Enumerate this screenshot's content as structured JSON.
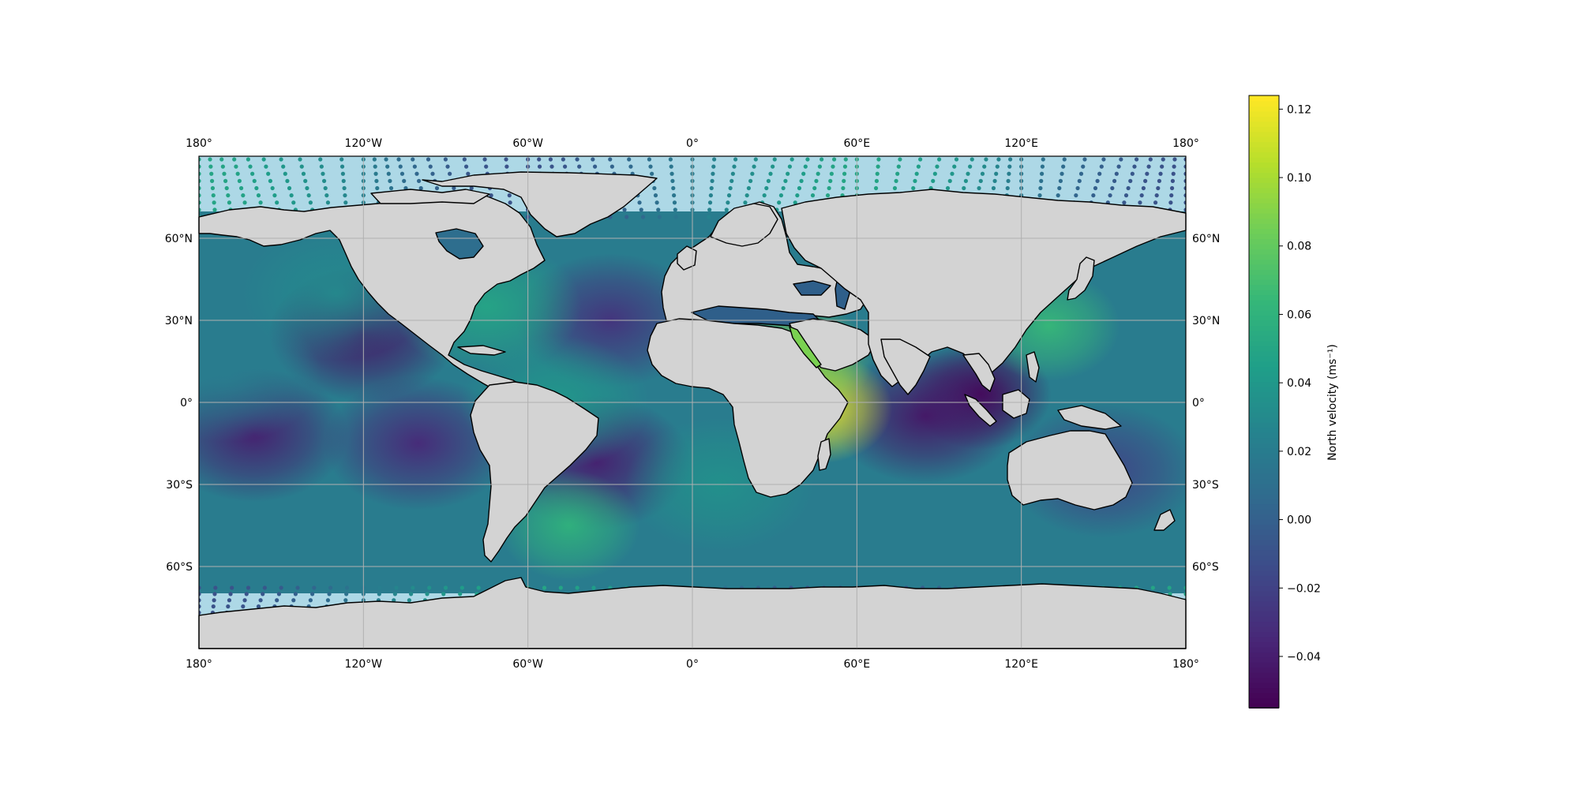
{
  "map": {
    "projection": "PlateCarree",
    "lon_range": [
      -180,
      180
    ],
    "lat_range": [
      -90,
      90
    ],
    "gridlines": true,
    "lon_ticks": [
      {
        "value": -180,
        "label": "180°"
      },
      {
        "value": -120,
        "label": "120°W"
      },
      {
        "value": -60,
        "label": "60°W"
      },
      {
        "value": 0,
        "label": "0°"
      },
      {
        "value": 60,
        "label": "60°E"
      },
      {
        "value": 120,
        "label": "120°E"
      },
      {
        "value": 180,
        "label": "180°"
      }
    ],
    "lat_ticks": [
      {
        "value": 60,
        "label": "60°N"
      },
      {
        "value": 30,
        "label": "30°N"
      },
      {
        "value": 0,
        "label": "0°"
      },
      {
        "value": -30,
        "label": "30°S"
      },
      {
        "value": -60,
        "label": "60°S"
      }
    ],
    "colors": {
      "land": "#d3d3d3",
      "ocean_background": "#add8e6",
      "coastline": "#000000",
      "gridline": "#b0b0b0"
    },
    "colormap": "viridis",
    "field_features": [
      {
        "lon": -120,
        "lat": 25,
        "value": -0.045
      },
      {
        "lon": -160,
        "lat": -12,
        "value": -0.04
      },
      {
        "lon": -100,
        "lat": -15,
        "value": -0.035
      },
      {
        "lon": -30,
        "lat": 30,
        "value": -0.03
      },
      {
        "lon": -35,
        "lat": -22,
        "value": -0.04
      },
      {
        "lon": 105,
        "lat": 3,
        "value": -0.055
      },
      {
        "lon": 85,
        "lat": -5,
        "value": -0.045
      },
      {
        "lon": 150,
        "lat": -25,
        "value": -0.02
      },
      {
        "lon": 47,
        "lat": -2,
        "value": 0.12
      },
      {
        "lon": 40,
        "lat": 16,
        "value": 0.09
      },
      {
        "lon": 130,
        "lat": 28,
        "value": 0.065
      },
      {
        "lon": -75,
        "lat": 35,
        "value": 0.05
      },
      {
        "lon": -45,
        "lat": -45,
        "value": 0.06
      },
      {
        "lon": -130,
        "lat": 40,
        "value": 0.03
      },
      {
        "lon": -50,
        "lat": 0,
        "value": 0.04
      },
      {
        "lon": 10,
        "lat": -30,
        "value": 0.035
      },
      {
        "lon": -170,
        "lat": 10,
        "value": 0.02
      }
    ]
  },
  "colorbar": {
    "label": "North velocity (ms⁻¹)",
    "vmin": -0.055,
    "vmax": 0.124,
    "ticks": [
      {
        "value": -0.04,
        "label": "−0.04"
      },
      {
        "value": -0.02,
        "label": "−0.02"
      },
      {
        "value": 0.0,
        "label": "0.00"
      },
      {
        "value": 0.02,
        "label": "0.02"
      },
      {
        "value": 0.04,
        "label": "0.04"
      },
      {
        "value": 0.06,
        "label": "0.06"
      },
      {
        "value": 0.08,
        "label": "0.08"
      },
      {
        "value": 0.1,
        "label": "0.10"
      },
      {
        "value": 0.12,
        "label": "0.12"
      }
    ]
  }
}
